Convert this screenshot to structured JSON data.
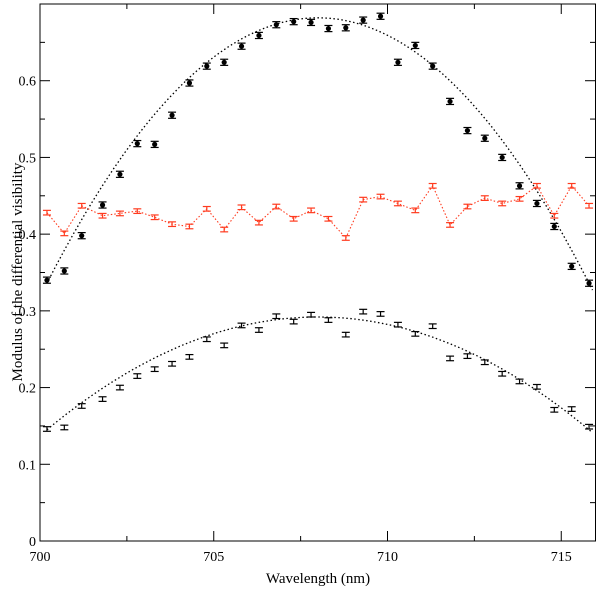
{
  "chart_data": {
    "type": "scatter",
    "title": "",
    "xlabel": "Wavelength (nm)",
    "ylabel": "Modulus of the differential visibility",
    "xlim": [
      700,
      716
    ],
    "ylim": [
      0,
      0.7
    ],
    "x_ticks": [
      "700",
      "705",
      "710",
      "715"
    ],
    "y_ticks": [
      "0",
      "0.1",
      "0.2",
      "0.3",
      "0.4",
      "0.5",
      "0.6"
    ],
    "grid": false,
    "legend": "none",
    "series": [
      {
        "color": "#000000",
        "marker": "circle",
        "error": 0.004,
        "points": [
          [
            700.2,
            0.34
          ],
          [
            700.7,
            0.352
          ],
          [
            701.2,
            0.398
          ],
          [
            701.8,
            0.438
          ],
          [
            702.3,
            0.478
          ],
          [
            702.8,
            0.518
          ],
          [
            703.3,
            0.517
          ],
          [
            703.8,
            0.555
          ],
          [
            704.3,
            0.597
          ],
          [
            704.8,
            0.619
          ],
          [
            705.3,
            0.624
          ],
          [
            705.8,
            0.645
          ],
          [
            706.3,
            0.659
          ],
          [
            706.8,
            0.673
          ],
          [
            707.3,
            0.677
          ],
          [
            707.8,
            0.676
          ],
          [
            708.3,
            0.668
          ],
          [
            708.8,
            0.669
          ],
          [
            709.3,
            0.679
          ],
          [
            709.8,
            0.684
          ],
          [
            710.3,
            0.624
          ],
          [
            710.8,
            0.646
          ],
          [
            711.3,
            0.619
          ],
          [
            711.8,
            0.573
          ],
          [
            712.3,
            0.535
          ],
          [
            712.8,
            0.525
          ],
          [
            713.3,
            0.5
          ],
          [
            713.8,
            0.463
          ],
          [
            714.3,
            0.44
          ],
          [
            714.8,
            0.41
          ],
          [
            715.3,
            0.358
          ],
          [
            715.8,
            0.336
          ]
        ]
      },
      {
        "color": "#ff3b1f",
        "marker": "none",
        "connected": true,
        "error": 0.003,
        "points": [
          [
            700.2,
            0.428
          ],
          [
            700.7,
            0.401
          ],
          [
            701.2,
            0.437
          ],
          [
            701.8,
            0.424
          ],
          [
            702.3,
            0.427
          ],
          [
            702.8,
            0.43
          ],
          [
            703.3,
            0.422
          ],
          [
            703.8,
            0.413
          ],
          [
            704.3,
            0.41
          ],
          [
            704.8,
            0.433
          ],
          [
            705.3,
            0.406
          ],
          [
            705.8,
            0.435
          ],
          [
            706.3,
            0.415
          ],
          [
            706.8,
            0.436
          ],
          [
            707.3,
            0.42
          ],
          [
            707.8,
            0.431
          ],
          [
            708.3,
            0.42
          ],
          [
            708.8,
            0.395
          ],
          [
            709.3,
            0.445
          ],
          [
            709.8,
            0.449
          ],
          [
            710.3,
            0.44
          ],
          [
            710.8,
            0.431
          ],
          [
            711.3,
            0.463
          ],
          [
            711.8,
            0.412
          ],
          [
            712.3,
            0.436
          ],
          [
            712.8,
            0.447
          ],
          [
            713.3,
            0.44
          ],
          [
            713.8,
            0.446
          ],
          [
            714.3,
            0.463
          ],
          [
            714.8,
            0.424
          ],
          [
            715.3,
            0.463
          ],
          [
            715.8,
            0.437
          ]
        ]
      },
      {
        "color": "#000000",
        "marker": "none",
        "error": 0.003,
        "points": [
          [
            700.2,
            0.146
          ],
          [
            700.7,
            0.148
          ],
          [
            701.2,
            0.176
          ],
          [
            701.8,
            0.185
          ],
          [
            702.3,
            0.2
          ],
          [
            702.8,
            0.215
          ],
          [
            703.3,
            0.224
          ],
          [
            703.8,
            0.231
          ],
          [
            704.3,
            0.24
          ],
          [
            704.8,
            0.263
          ],
          [
            705.3,
            0.255
          ],
          [
            705.8,
            0.281
          ],
          [
            706.3,
            0.275
          ],
          [
            706.8,
            0.293
          ],
          [
            707.3,
            0.286
          ],
          [
            707.8,
            0.295
          ],
          [
            708.3,
            0.288
          ],
          [
            708.8,
            0.269
          ],
          [
            709.3,
            0.299
          ],
          [
            709.8,
            0.296
          ],
          [
            710.3,
            0.282
          ],
          [
            710.8,
            0.27
          ],
          [
            711.3,
            0.28
          ],
          [
            711.8,
            0.238
          ],
          [
            712.3,
            0.241
          ],
          [
            712.8,
            0.233
          ],
          [
            713.3,
            0.218
          ],
          [
            713.8,
            0.208
          ],
          [
            714.3,
            0.201
          ],
          [
            714.8,
            0.171
          ],
          [
            715.3,
            0.172
          ],
          [
            715.8,
            0.149
          ]
        ]
      }
    ],
    "fits": [
      {
        "style": "dotted",
        "color": "#000000",
        "x0": 700.2,
        "x1": 715.9,
        "peak_x": 708,
        "peak_y": 0.682,
        "end_y": 0.336
      },
      {
        "style": "dotted",
        "color": "#000000",
        "x0": 700.2,
        "x1": 715.9,
        "peak_x": 708,
        "peak_y": 0.292,
        "end_y": 0.145
      }
    ]
  }
}
